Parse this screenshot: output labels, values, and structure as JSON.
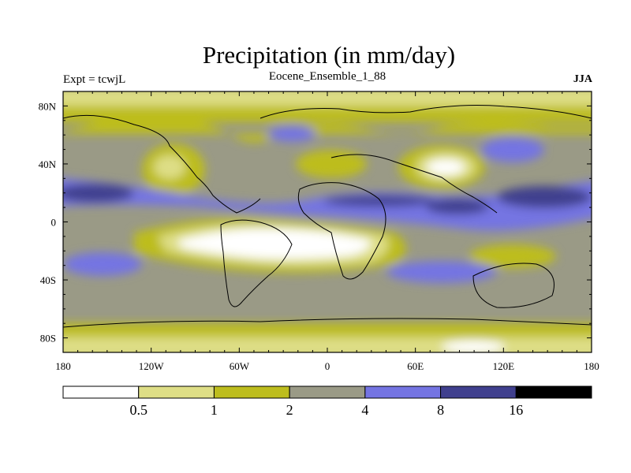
{
  "title": "Precipitation (in mm/day)",
  "left_string": "Expt = tcwjL",
  "center_string": "Eocene_Ensemble_1_88",
  "right_string": "JJA",
  "map": {
    "projection": "cylindrical-equidistant",
    "lon_range": [
      -180,
      180
    ],
    "lat_range": [
      -90,
      90
    ],
    "lat_ticks": [
      "80N",
      "40N",
      "0",
      "40S",
      "80S"
    ],
    "lon_ticks": [
      "180",
      "120W",
      "60W",
      "0",
      "60E",
      "120E",
      "180"
    ]
  },
  "colorbar": {
    "labels": [
      "0.5",
      "1",
      "2",
      "4",
      "8",
      "16"
    ],
    "colors": [
      "#ffffff",
      "#dede86",
      "#bdbd1e",
      "#9a9a86",
      "#7474e2",
      "#40408e",
      "#000000"
    ]
  }
}
